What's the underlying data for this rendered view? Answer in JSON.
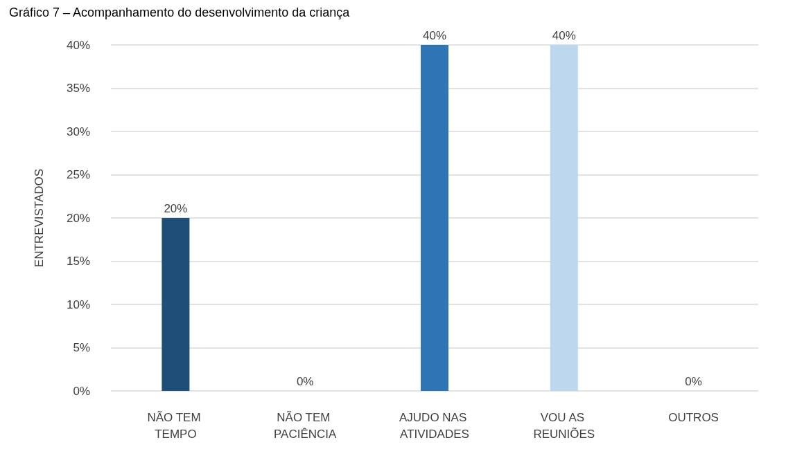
{
  "chart_data": {
    "type": "bar",
    "title": "Gráfico 7 – Acompanhamento do desenvolvimento da criança",
    "ylabel": "ENTREVISTADOS",
    "categories": [
      "NÃO TEM TEMPO",
      "NÃO TEM PACIÊNCIA",
      "AJUDO NAS ATIVIDADES",
      "VOU AS REUNIÕES",
      "OUTROS"
    ],
    "values": [
      20,
      0,
      40,
      40,
      0
    ],
    "colors": [
      "#1f4e79",
      "#1f4e79",
      "#2e75b6",
      "#bdd7ee",
      "#adb9ca"
    ],
    "value_labels": [
      "20%",
      "0%",
      "40%",
      "40%",
      "0%"
    ],
    "ylim": [
      0,
      40
    ],
    "yticks": [
      {
        "value": 0,
        "label": "0%"
      },
      {
        "value": 5,
        "label": "5%"
      },
      {
        "value": 10,
        "label": "10%"
      },
      {
        "value": 15,
        "label": "15%"
      },
      {
        "value": 20,
        "label": "20%"
      },
      {
        "value": 25,
        "label": "25%"
      },
      {
        "value": 30,
        "label": "30%"
      },
      {
        "value": 35,
        "label": "35%"
      },
      {
        "value": 40,
        "label": "40%"
      }
    ],
    "grid": "y"
  }
}
